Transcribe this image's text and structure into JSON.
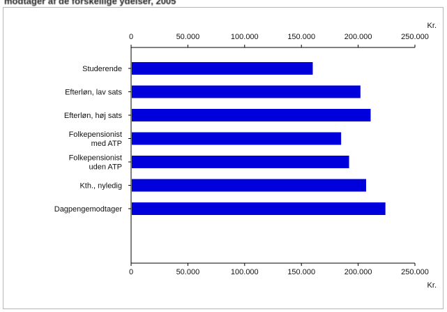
{
  "page": {
    "title": "modtager af de forskellige ydelser, 2005"
  },
  "chart_data": {
    "type": "bar",
    "orientation": "horizontal",
    "title": "modtager af de forskellige ydelser, 2005",
    "xlabel": "Kr.",
    "ylabel": "",
    "xlim": [
      0,
      250000
    ],
    "tick_values": [
      0,
      50000,
      100000,
      150000,
      200000,
      250000
    ],
    "tick_labels": [
      "0",
      "50.000",
      "100.000",
      "150.000",
      "200.000",
      "250.000"
    ],
    "unit_label": "Kr.",
    "grid": false,
    "legend": "none",
    "bar_color": "#0000dd",
    "categories": [
      [
        "Studerende"
      ],
      [
        "Efterløn, lav sats"
      ],
      [
        "Efterløn, høj sats"
      ],
      [
        "Folkepensionist",
        "med ATP"
      ],
      [
        "Folkepensionist",
        "uden ATP"
      ],
      [
        "Kth., nyledig"
      ],
      [
        "Dagpengemodtager"
      ]
    ],
    "values": [
      160000,
      202000,
      211000,
      185000,
      192000,
      207000,
      224000
    ]
  }
}
